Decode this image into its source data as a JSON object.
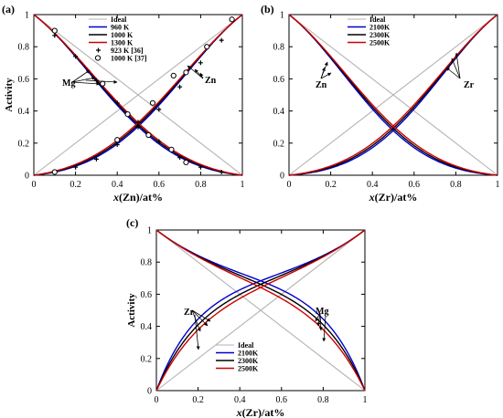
{
  "chart_data": [
    {
      "panel_label": "(a)",
      "type": "line",
      "xlabel": "x(Zn)/at%",
      "ylabel": "Activity",
      "xlim": [
        0,
        1
      ],
      "ylim": [
        0,
        1
      ],
      "xticks": [
        "0",
        "0.2",
        "0.4",
        "0.6",
        "0.8",
        "1"
      ],
      "yticks": [
        "0",
        "0.2",
        "0.4",
        "0.6",
        "0.8",
        "1"
      ],
      "legend_placement": "top-center",
      "annotations": [
        "Mg",
        "Zn"
      ],
      "series": [
        {
          "name": "Ideal",
          "color": "#b3b3b3",
          "x": [
            0,
            1
          ],
          "Zn": [
            0,
            1
          ],
          "Mg": [
            1,
            0
          ]
        },
        {
          "name": "960 K",
          "color": "#0000cc",
          "omega": -2.0
        },
        {
          "name": "1000 K",
          "color": "#000000",
          "omega": -1.85
        },
        {
          "name": "1300 K",
          "color": "#cc0000",
          "omega": -1.7
        },
        {
          "name": "923 K [36]",
          "marker": "plus",
          "x": [
            0.1,
            0.2,
            0.3,
            0.4,
            0.5,
            0.6,
            0.7,
            0.8,
            0.9,
            0.1,
            0.2,
            0.3,
            0.4,
            0.5,
            0.6,
            0.7,
            0.8,
            0.9
          ],
          "y": [
            0.02,
            0.05,
            0.1,
            0.19,
            0.3,
            0.41,
            0.55,
            0.7,
            0.84,
            0.87,
            0.74,
            0.59,
            0.45,
            0.33,
            0.21,
            0.11,
            0.05,
            0.02
          ]
        },
        {
          "name": "1000 K [37]",
          "marker": "circle",
          "x": [
            0.1,
            0.4,
            0.57,
            0.67,
            0.73,
            0.83,
            0.95,
            0.1,
            0.33,
            0.45,
            0.55,
            0.66,
            0.73
          ],
          "y": [
            0.02,
            0.22,
            0.45,
            0.62,
            0.64,
            0.8,
            0.97,
            0.9,
            0.57,
            0.38,
            0.25,
            0.16,
            0.08
          ]
        }
      ]
    },
    {
      "panel_label": "(b)",
      "type": "line",
      "xlabel": "x(Zr)/at%",
      "ylabel": "",
      "xlim": [
        0,
        1
      ],
      "ylim": [
        0,
        1
      ],
      "xticks": [
        "0",
        "0.2",
        "0.4",
        "0.6",
        "0.8",
        "1"
      ],
      "yticks": [
        "0",
        "0.2",
        "0.4",
        "0.6",
        "0.8",
        "1"
      ],
      "legend_placement": "top-center",
      "annotations": [
        "Zn",
        "Zr"
      ],
      "series": [
        {
          "name": "Ideal",
          "color": "#b3b3b3",
          "x": [
            0,
            1
          ],
          "Zr": [
            0,
            1
          ],
          "Zn": [
            1,
            0
          ]
        },
        {
          "name": "2100K",
          "color": "#0000cc",
          "omega": -2.35
        },
        {
          "name": "2300K",
          "color": "#000000",
          "omega": -2.15
        },
        {
          "name": "2500K",
          "color": "#cc0000",
          "omega": -1.95
        }
      ]
    },
    {
      "panel_label": "(c)",
      "type": "line",
      "xlabel": "x(Zr)/at%",
      "ylabel": "Activity",
      "xlim": [
        0,
        1
      ],
      "ylim": [
        0,
        1
      ],
      "xticks": [
        "0",
        "0.2",
        "0.4",
        "0.6",
        "0.8",
        "1"
      ],
      "yticks": [
        "0",
        "0.2",
        "0.4",
        "0.6",
        "0.8",
        "1"
      ],
      "legend_placement": "bottom-center",
      "annotations": [
        "Zr",
        "Mg"
      ],
      "series": [
        {
          "name": "Ideal",
          "color": "#b3b3b3",
          "x": [
            0,
            1
          ],
          "Zr": [
            0,
            1
          ],
          "Mg": [
            1,
            0
          ]
        },
        {
          "name": "2100K",
          "color": "#0000cc",
          "omega": 1.25
        },
        {
          "name": "2300K",
          "color": "#000000",
          "omega": 1.12
        },
        {
          "name": "2500K",
          "color": "#cc0000",
          "omega": 1.0
        }
      ]
    }
  ]
}
